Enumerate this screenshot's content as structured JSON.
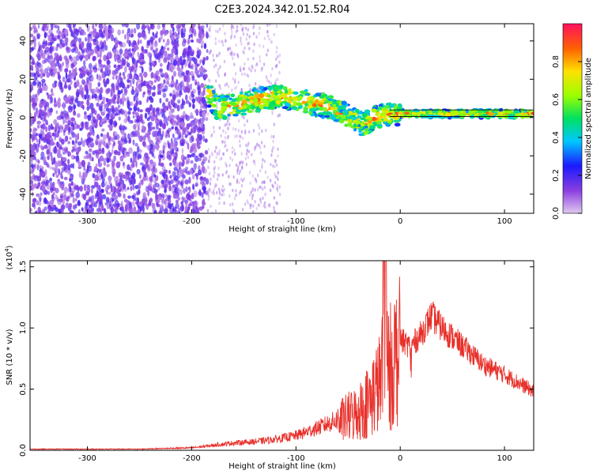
{
  "title": "C2E3.2024.342.01.52.R04",
  "chart_data": [
    {
      "type": "heatmap",
      "xlabel": "Height of straight line (km)",
      "ylabel": "Frequency (Hz)",
      "xlim": [
        -355,
        128
      ],
      "ylim": [
        -50,
        49
      ],
      "xticks": [
        -300,
        -200,
        -100,
        0,
        100
      ],
      "yticks": [
        -40,
        -20,
        0,
        20,
        40
      ],
      "ridge": {
        "x": [
          -185,
          -175,
          -160,
          -140,
          -120,
          -100,
          -80,
          -60,
          -45,
          -35,
          -25,
          -10,
          0,
          20,
          50,
          90,
          128
        ],
        "y": [
          13,
          5,
          6,
          9,
          11,
          10,
          7,
          4,
          -1,
          -4,
          0,
          2,
          2,
          2,
          2,
          2,
          2
        ]
      },
      "colorbar": {
        "label": "Normalized spectral amplitude",
        "range": [
          0,
          1
        ],
        "ticks": [
          0.0,
          0.2,
          0.4,
          0.6,
          0.8
        ]
      }
    },
    {
      "type": "line",
      "xlabel": "Height of straight line (km)",
      "ylabel": "SNR (10 * v/v)",
      "multiplier": "(x10",
      "multiplier_exp": "4",
      "multiplier_close": ")",
      "xlim": [
        -355,
        128
      ],
      "ylim": [
        0,
        1.55
      ],
      "xticks": [
        -300,
        -200,
        -100,
        0,
        100
      ],
      "yticks": [
        "0.0",
        "0.5",
        "1.0",
        "1.5"
      ],
      "color": "#e8302a",
      "envelope": {
        "x": [
          -355,
          -250,
          -200,
          -180,
          -160,
          -140,
          -120,
          -100,
          -80,
          -60,
          -50,
          -40,
          -30,
          -20,
          -15,
          -10,
          -5,
          0,
          10,
          20,
          30,
          40,
          60,
          80,
          100,
          128
        ],
        "y": [
          0.01,
          0.01,
          0.02,
          0.04,
          0.06,
          0.07,
          0.09,
          0.12,
          0.18,
          0.25,
          0.3,
          0.35,
          0.45,
          0.6,
          0.8,
          0.75,
          0.85,
          0.9,
          0.85,
          0.95,
          1.1,
          1.0,
          0.85,
          0.7,
          0.62,
          0.48
        ]
      }
    }
  ]
}
